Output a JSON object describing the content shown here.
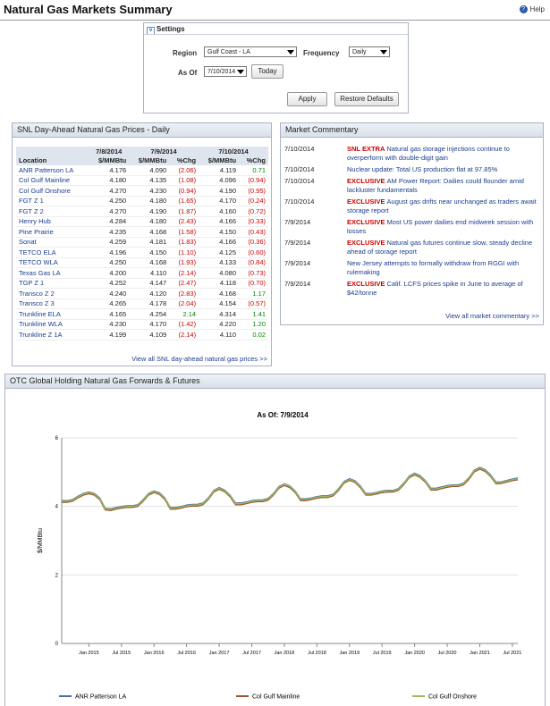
{
  "header": {
    "title": "Natural Gas Markets Summary",
    "help": "Help"
  },
  "settings": {
    "title": "Settings",
    "region_label": "Region",
    "region": "Gulf Coast - LA",
    "frequency_label": "Frequency",
    "frequency": "Daily",
    "as_of_label": "As Of",
    "as_of": "7/10/2014",
    "today": "Today",
    "apply": "Apply",
    "restore": "Restore Defaults"
  },
  "prices": {
    "title": "SNL Day-Ahead Natural Gas Prices - Daily",
    "dates": [
      "7/8/2014",
      "7/9/2014",
      "7/10/2014"
    ],
    "columns": [
      "Location",
      "$/MMBtu",
      "$/MMBtu",
      "%Chg",
      "$/MMBtu",
      "%Chg"
    ],
    "rows": [
      [
        "ANR Patterson LA",
        "4.176",
        "4.090",
        "(2.06)",
        "4.119",
        "0.71"
      ],
      [
        "Col Gulf Mainline",
        "4.180",
        "4.135",
        "(1.08)",
        "4.096",
        "(0.94)"
      ],
      [
        "Col Gulf Onshore",
        "4.270",
        "4.230",
        "(0.94)",
        "4.190",
        "(0.95)"
      ],
      [
        "FGT Z 1",
        "4.250",
        "4.180",
        "(1.65)",
        "4.170",
        "(0.24)"
      ],
      [
        "FGT Z 2",
        "4.270",
        "4.190",
        "(1.87)",
        "4.160",
        "(0.72)"
      ],
      [
        "Henry Hub",
        "4.284",
        "4.180",
        "(2.43)",
        "4.166",
        "(0.33)"
      ],
      [
        "Pine Prairie",
        "4.235",
        "4.168",
        "(1.58)",
        "4.150",
        "(0.43)"
      ],
      [
        "Sonat",
        "4.259",
        "4.181",
        "(1.83)",
        "4.166",
        "(0.36)"
      ],
      [
        "TETCO ELA",
        "4.196",
        "4.150",
        "(1.10)",
        "4.125",
        "(0.60)"
      ],
      [
        "TETCO WLA",
        "4.250",
        "4.168",
        "(1.93)",
        "4.133",
        "(0.84)"
      ],
      [
        "Texas Gas LA",
        "4.200",
        "4.110",
        "(2.14)",
        "4.080",
        "(0.73)"
      ],
      [
        "TGP Z 1",
        "4.252",
        "4.147",
        "(2.47)",
        "4.118",
        "(0.70)"
      ],
      [
        "Transco Z 2",
        "4.240",
        "4.120",
        "(2.83)",
        "4.168",
        "1.17"
      ],
      [
        "Transco Z 3",
        "4.265",
        "4.178",
        "(2.04)",
        "4.154",
        "(0.57)"
      ],
      [
        "Trunkline ELA",
        "4.165",
        "4.254",
        "2.14",
        "4.314",
        "1.41"
      ],
      [
        "Trunkline WLA",
        "4.230",
        "4.170",
        "(1.42)",
        "4.220",
        "1.20"
      ],
      [
        "Trunkline Z 1A",
        "4.199",
        "4.109",
        "(2.14)",
        "4.110",
        "0.02"
      ]
    ],
    "link": "View all SNL day-ahead natural gas prices >>"
  },
  "commentary": {
    "title": "Market Commentary",
    "items": [
      {
        "date": "7/10/2014",
        "tag": "SNL EXTRA",
        "text": "Natural gas storage injections continue to overperform with double-digit gain"
      },
      {
        "date": "7/10/2014",
        "text": "Nuclear update: Total US production flat at 97.85%"
      },
      {
        "date": "7/10/2014",
        "tag": "EXCLUSIVE",
        "text": "AM Power Report: Dailies could flounder amid lackluster fundamentals"
      },
      {
        "date": "7/10/2014",
        "tag": "EXCLUSIVE",
        "text": "August gas drifts near unchanged as traders await storage report"
      },
      {
        "date": "7/9/2014",
        "tag": "EXCLUSIVE",
        "text": "Most US power dailies end midweek session with losses"
      },
      {
        "date": "7/9/2014",
        "tag": "EXCLUSIVE",
        "text": "Natural gas futures continue slow, steady decline ahead of storage report"
      },
      {
        "date": "7/9/2014",
        "text": "New Jersey attempts to formally withdraw from RGGI with rulemaking"
      },
      {
        "date": "7/9/2014",
        "tag": "EXCLUSIVE",
        "text": "Calif. LCFS prices spike in June to average of $42/tonne"
      }
    ],
    "link": "View all market commentary >>"
  },
  "forwards_panel": {
    "title": "OTC Global Holding Natural Gas Forwards & Futures"
  },
  "chart_data": {
    "type": "line",
    "title": "As Of: 7/9/2014",
    "y_label": "$/MMBtu",
    "x": [
      "2014-08",
      "2014-09",
      "2014-10",
      "2014-11",
      "2014-12",
      "2015-01",
      "2015-02",
      "2015-03",
      "2015-04",
      "2015-05",
      "2015-06",
      "2015-07",
      "2015-08",
      "2015-09",
      "2015-10",
      "2015-11",
      "2015-12",
      "2016-01",
      "2016-02",
      "2016-03",
      "2016-04",
      "2016-05",
      "2016-06",
      "2016-07",
      "2016-08",
      "2016-09",
      "2016-10",
      "2016-11",
      "2016-12",
      "2017-01",
      "2017-02",
      "2017-03",
      "2017-04",
      "2017-05",
      "2017-06",
      "2017-07",
      "2017-08",
      "2017-09",
      "2017-10",
      "2017-11",
      "2017-12",
      "2018-01",
      "2018-02",
      "2018-03",
      "2018-04",
      "2018-05",
      "2018-06",
      "2018-07",
      "2018-08",
      "2018-09",
      "2018-10",
      "2018-11",
      "2018-12",
      "2019-01",
      "2019-02",
      "2019-03",
      "2019-04",
      "2019-05",
      "2019-06",
      "2019-07",
      "2019-08",
      "2019-09",
      "2019-10",
      "2019-11",
      "2019-12",
      "2020-01",
      "2020-02",
      "2020-03",
      "2020-04",
      "2020-05",
      "2020-06",
      "2020-07",
      "2020-08",
      "2020-09",
      "2020-10",
      "2020-11",
      "2020-12",
      "2021-01",
      "2021-02",
      "2021-03",
      "2021-04",
      "2021-05",
      "2021-06",
      "2021-07",
      "2021-08"
    ],
    "xlim": [
      "2014-08",
      "2021-08"
    ],
    "xticks": [
      {
        "value": "2015-01",
        "label": "Jan 2015"
      },
      {
        "value": "2015-07",
        "label": "Jul 2015"
      },
      {
        "value": "2016-01",
        "label": "Jan 2016"
      },
      {
        "value": "2016-07",
        "label": "Jul 2016"
      },
      {
        "value": "2017-01",
        "label": "Jan 2017"
      },
      {
        "value": "2017-07",
        "label": "Jul 2017"
      },
      {
        "value": "2018-01",
        "label": "Jan 2018"
      },
      {
        "value": "2018-07",
        "label": "Jul 2018"
      },
      {
        "value": "2019-01",
        "label": "Jan 2019"
      },
      {
        "value": "2019-07",
        "label": "Jul 2019"
      },
      {
        "value": "2020-01",
        "label": "Jan 2020"
      },
      {
        "value": "2020-07",
        "label": "Jul 2020"
      },
      {
        "value": "2021-01",
        "label": "Jan 2021"
      },
      {
        "value": "2021-07",
        "label": "Jul 2021"
      }
    ],
    "ylim": [
      0,
      6
    ],
    "yticks": [
      0,
      2,
      4,
      6
    ],
    "grid": true,
    "series": [
      {
        "name": "ANR Patterson LA",
        "color": "#4a6fa5",
        "values": [
          4.17,
          4.17,
          4.2,
          4.3,
          4.38,
          4.42,
          4.38,
          4.25,
          3.95,
          3.93,
          3.97,
          4.0,
          4.02,
          4.02,
          4.05,
          4.2,
          4.38,
          4.45,
          4.4,
          4.25,
          3.97,
          3.97,
          4.0,
          4.04,
          4.06,
          4.06,
          4.1,
          4.25,
          4.47,
          4.55,
          4.48,
          4.33,
          4.1,
          4.1,
          4.13,
          4.17,
          4.19,
          4.19,
          4.23,
          4.38,
          4.58,
          4.66,
          4.6,
          4.45,
          4.22,
          4.22,
          4.25,
          4.29,
          4.31,
          4.31,
          4.36,
          4.52,
          4.73,
          4.81,
          4.75,
          4.6,
          4.38,
          4.38,
          4.41,
          4.45,
          4.47,
          4.47,
          4.52,
          4.68,
          4.89,
          4.97,
          4.9,
          4.75,
          4.53,
          4.53,
          4.57,
          4.61,
          4.63,
          4.63,
          4.68,
          4.84,
          5.06,
          5.14,
          5.07,
          4.92,
          4.71,
          4.72,
          4.76,
          4.8,
          4.83
        ]
      },
      {
        "name": "Col Gulf Mainline",
        "color": "#a0522d",
        "values": [
          4.12,
          4.12,
          4.15,
          4.25,
          4.33,
          4.37,
          4.33,
          4.2,
          3.9,
          3.88,
          3.92,
          3.95,
          3.97,
          3.97,
          4.0,
          4.15,
          4.33,
          4.4,
          4.35,
          4.2,
          3.92,
          3.92,
          3.95,
          3.99,
          4.01,
          4.01,
          4.05,
          4.2,
          4.42,
          4.5,
          4.43,
          4.28,
          4.05,
          4.05,
          4.08,
          4.12,
          4.14,
          4.14,
          4.18,
          4.33,
          4.53,
          4.61,
          4.55,
          4.4,
          4.17,
          4.17,
          4.2,
          4.24,
          4.26,
          4.26,
          4.31,
          4.47,
          4.68,
          4.76,
          4.7,
          4.55,
          4.33,
          4.33,
          4.36,
          4.4,
          4.42,
          4.42,
          4.47,
          4.63,
          4.84,
          4.92,
          4.85,
          4.7,
          4.48,
          4.48,
          4.52,
          4.56,
          4.58,
          4.58,
          4.63,
          4.79,
          5.01,
          5.09,
          5.02,
          4.87,
          4.66,
          4.67,
          4.71,
          4.75,
          4.78
        ]
      },
      {
        "name": "Col Gulf Onshore",
        "color": "#9bbb59",
        "values": [
          4.15,
          4.15,
          4.18,
          4.28,
          4.36,
          4.4,
          4.36,
          4.23,
          3.93,
          3.91,
          3.95,
          3.98,
          4.0,
          4.0,
          4.03,
          4.18,
          4.36,
          4.43,
          4.38,
          4.23,
          3.95,
          3.95,
          3.98,
          4.02,
          4.04,
          4.04,
          4.08,
          4.23,
          4.45,
          4.53,
          4.46,
          4.31,
          4.08,
          4.08,
          4.11,
          4.15,
          4.17,
          4.17,
          4.21,
          4.36,
          4.56,
          4.64,
          4.58,
          4.43,
          4.2,
          4.2,
          4.23,
          4.27,
          4.29,
          4.29,
          4.34,
          4.5,
          4.71,
          4.79,
          4.73,
          4.58,
          4.36,
          4.36,
          4.39,
          4.43,
          4.45,
          4.45,
          4.5,
          4.66,
          4.87,
          4.95,
          4.88,
          4.73,
          4.51,
          4.51,
          4.55,
          4.59,
          4.61,
          4.61,
          4.66,
          4.82,
          5.04,
          5.12,
          5.05,
          4.9,
          4.69,
          4.7,
          4.74,
          4.78,
          4.81
        ]
      }
    ]
  }
}
